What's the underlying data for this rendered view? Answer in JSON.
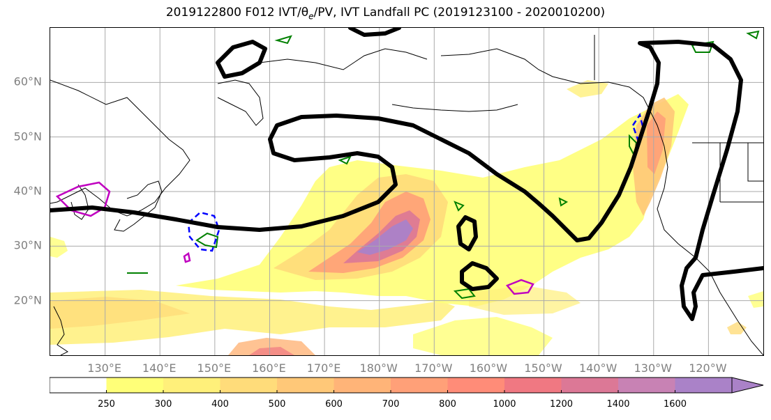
{
  "title": "2019122800 F012 IVT/θ",
  "title_sub": "e",
  "title_rest": "/PV, IVT Landfall PC (2019123100 - 2020010200)",
  "lat_labels": [
    {
      "label": "60°N",
      "lat": 60
    },
    {
      "label": "50°N",
      "lat": 50
    },
    {
      "label": "40°N",
      "lat": 40
    },
    {
      "label": "30°N",
      "lat": 30
    },
    {
      "label": "20°N",
      "lat": 20
    }
  ],
  "lon_labels": [
    {
      "label": "130°E",
      "lon": 130
    },
    {
      "label": "140°E",
      "lon": 140
    },
    {
      "label": "150°E",
      "lon": 150
    },
    {
      "label": "160°E",
      "lon": 160
    },
    {
      "label": "170°E",
      "lon": 170
    },
    {
      "label": "180°W",
      "lon": 180
    },
    {
      "label": "170°W",
      "lon": 190
    },
    {
      "label": "160°W",
      "lon": 200
    },
    {
      "label": "150°W",
      "lon": 210
    },
    {
      "label": "140°W",
      "lon": 220
    },
    {
      "label": "130°W",
      "lon": 230
    },
    {
      "label": "120°W",
      "lon": 240
    }
  ],
  "map_extent": {
    "lon_min": 120,
    "lon_max": 250,
    "lat_min": 10,
    "lat_max": 70
  },
  "colorbar": {
    "levels": [
      "250",
      "300",
      "400",
      "500",
      "600",
      "700",
      "800",
      "1000",
      "1200",
      "1400",
      "1600"
    ],
    "colors": [
      "#ffffff",
      "#ffff78",
      "#fff07a",
      "#ffdc7a",
      "#ffc878",
      "#ffb478",
      "#ffa078",
      "#ff8c78",
      "#f07882",
      "#dc7896",
      "#c882b4",
      "#aa82c8"
    ],
    "extend": "max"
  },
  "colors": {
    "ivt_low": "#ffff78",
    "ivt_high": "#aa82c8",
    "pv_contour": "#000000",
    "green_contour": "#008000",
    "blue_contour": "#0000ff",
    "magenta_contour": "#c000c0",
    "coastline": "#000000",
    "grid": "#aaaaaa"
  }
}
